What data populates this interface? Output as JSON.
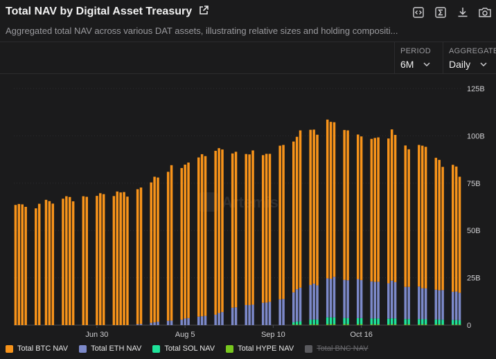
{
  "header": {
    "title": "Total NAV by Digital Asset Treasury",
    "subtitle": "Aggregated total NAV across various DAT assets, illustrating relative sizes and holding compositi..."
  },
  "controls": {
    "period_label": "PERIOD",
    "period_value": "6M",
    "aggregate_label": "AGGREGATE",
    "aggregate_value": "Daily"
  },
  "watermark": "Artemis",
  "colors": {
    "btc": "#f7931a",
    "eth": "#7c89c9",
    "sol": "#1ee39a",
    "hype": "#78c81e",
    "bnb": "#5a5a5e"
  },
  "legend": [
    {
      "label": "Total BTC NAV",
      "color": "#f7931a",
      "enabled": true
    },
    {
      "label": "Total ETH NAV",
      "color": "#7c89c9",
      "enabled": true
    },
    {
      "label": "Total SOL NAV",
      "color": "#1ee39a",
      "enabled": true
    },
    {
      "label": "Total HYPE NAV",
      "color": "#78c81e",
      "enabled": true
    },
    {
      "label": "Total BNC NAV",
      "color": "#5a5a5e",
      "enabled": false
    }
  ],
  "chart_data": {
    "type": "bar",
    "stacked": true,
    "title": "Total NAV by Digital Asset Treasury",
    "y_axis_position": "right",
    "ylim": [
      0,
      125
    ],
    "y_ticks": [
      "0",
      "25B",
      "50B",
      "75B",
      "100B",
      "125B"
    ],
    "y_tick_values": [
      0,
      25,
      50,
      75,
      100,
      125
    ],
    "x_tick_labels": [
      {
        "label": "Jun 30",
        "index": 24
      },
      {
        "label": "Aug 5",
        "index": 50
      },
      {
        "label": "Sep 10",
        "index": 76
      },
      {
        "label": "Oct 16",
        "index": 102
      }
    ],
    "unit": "B",
    "series": [
      {
        "name": "Total BTC NAV",
        "values": [
          63.5,
          64,
          63.8,
          62.5,
          0,
          0,
          61.7,
          64.1,
          0,
          66.2,
          65.5,
          64.2,
          0,
          0,
          66.8,
          68.1,
          67.7,
          65.4,
          0,
          0,
          68.1,
          67.8,
          0,
          0,
          68.3,
          69.7,
          69.2,
          0,
          0,
          68.2,
          70.6,
          70.1,
          70.3,
          67.9,
          0,
          0,
          71.3,
          72.1,
          0,
          0,
          74.2,
          76.9,
          76.2,
          0,
          0,
          78.7,
          82.1,
          0,
          0,
          80.1,
          81.3,
          82.2,
          0,
          0,
          84.1,
          85.6,
          84.4,
          0,
          0,
          86.6,
          87.1,
          85.9,
          0,
          0,
          81.5,
          82.2,
          0,
          0,
          79.8,
          79.6,
          81.5,
          0,
          0,
          78,
          78.6,
          78.2,
          0,
          0,
          81.2,
          81.4,
          0,
          0,
          79.7,
          80.6,
          83.1,
          0,
          0,
          82,
          81.4,
          79.6,
          0,
          0,
          83.9,
          82.9,
          81.7,
          0,
          0,
          79.2,
          79.2,
          0,
          0,
          76.4,
          75.9,
          0,
          0,
          75.3,
          76,
          76.3,
          0,
          0,
          76.5,
          79.9,
          77.8,
          0,
          0,
          74.7,
          72.7,
          0,
          0,
          74.8,
          75.3,
          74.8,
          0,
          0,
          69.7,
          68.9,
          65.1,
          0,
          0,
          67.1,
          66.1,
          61.3
        ]
      },
      {
        "name": "Total ETH NAV",
        "values": [
          0,
          0,
          0,
          0,
          0,
          0,
          0,
          0,
          0,
          0,
          0,
          0,
          0,
          0,
          0,
          0,
          0,
          0,
          0,
          0,
          0,
          0,
          0,
          0,
          0,
          0,
          0,
          0,
          0,
          0,
          0,
          0,
          0,
          0,
          0,
          0,
          0.5,
          0.6,
          0,
          0,
          1.2,
          1.5,
          1.8,
          0,
          0,
          2.3,
          2.4,
          0,
          0,
          2.9,
          3.5,
          3.7,
          0,
          0,
          4.5,
          4.7,
          4.9,
          0,
          0,
          5.5,
          6.4,
          6.9,
          0,
          0,
          9.2,
          9.4,
          0,
          0,
          10.6,
          10.6,
          10.8,
          0,
          0,
          11.8,
          11.9,
          12.3,
          0,
          0,
          13.6,
          13.8,
          0,
          0,
          15.8,
          17,
          17.8,
          0,
          0,
          18.3,
          18.9,
          18.1,
          0,
          0,
          20.6,
          20.4,
          21.4,
          0,
          0,
          20.1,
          20,
          0,
          0,
          20.6,
          20.1,
          0,
          0,
          19.6,
          19.4,
          19.4,
          0,
          0,
          18.7,
          19.9,
          19.2,
          0,
          0,
          17,
          17,
          0,
          0,
          17.2,
          16.4,
          16.3,
          0,
          0,
          15.7,
          15.5,
          15.7,
          0,
          0,
          14.9,
          15,
          14.5
        ]
      },
      {
        "name": "Total SOL NAV",
        "values": [
          0,
          0,
          0,
          0,
          0,
          0,
          0,
          0,
          0,
          0,
          0,
          0,
          0,
          0,
          0,
          0,
          0,
          0,
          0,
          0,
          0,
          0,
          0,
          0,
          0,
          0,
          0,
          0,
          0,
          0,
          0,
          0,
          0,
          0,
          0,
          0,
          0,
          0,
          0,
          0,
          0,
          0,
          0,
          0,
          0,
          0,
          0,
          0,
          0,
          0,
          0,
          0,
          0,
          0,
          0,
          0,
          0,
          0,
          0,
          0,
          0,
          0,
          0,
          0,
          0,
          0,
          0,
          0,
          0,
          0,
          0,
          0,
          0,
          0,
          0,
          0,
          0,
          0,
          0,
          0,
          0,
          0,
          1.2,
          1.6,
          1.7,
          0,
          0,
          2.5,
          2.6,
          2.5,
          0,
          0,
          3.6,
          3.6,
          3.6,
          0,
          0,
          3.3,
          3.2,
          0,
          0,
          3.2,
          3.2,
          0,
          0,
          3.1,
          3.1,
          3.1,
          0,
          0,
          3,
          3.2,
          3.1,
          0,
          0,
          2.8,
          2.8,
          0,
          0,
          2.8,
          2.7,
          2.7,
          0,
          0,
          2.6,
          2.5,
          2.5,
          0,
          0,
          2.4,
          2.4,
          2.3
        ]
      },
      {
        "name": "Total HYPE NAV",
        "values": [
          0,
          0,
          0,
          0,
          0,
          0,
          0,
          0,
          0,
          0,
          0,
          0,
          0,
          0,
          0,
          0,
          0,
          0,
          0,
          0,
          0,
          0,
          0,
          0,
          0,
          0,
          0,
          0,
          0,
          0,
          0,
          0,
          0,
          0,
          0,
          0,
          0,
          0,
          0,
          0,
          0,
          0,
          0,
          0,
          0,
          0,
          0,
          0,
          0,
          0,
          0,
          0,
          0,
          0,
          0,
          0,
          0,
          0,
          0,
          0,
          0,
          0,
          0,
          0,
          0,
          0,
          0,
          0,
          0,
          0,
          0,
          0,
          0,
          0,
          0,
          0,
          0,
          0,
          0,
          0,
          0,
          0,
          0.3,
          0.3,
          0.3,
          0,
          0,
          0.4,
          0.4,
          0.4,
          0,
          0,
          0.5,
          0.5,
          0.5,
          0,
          0,
          0.5,
          0.5,
          0,
          0,
          0.5,
          0.5,
          0,
          0,
          0.4,
          0.4,
          0.4,
          0,
          0,
          0.4,
          0.4,
          0.4,
          0,
          0,
          0.4,
          0.4,
          0,
          0,
          0.4,
          0.4,
          0.4,
          0,
          0,
          0.4,
          0.4,
          0.3,
          0,
          0,
          0.3,
          0.3,
          0.3
        ]
      }
    ]
  }
}
